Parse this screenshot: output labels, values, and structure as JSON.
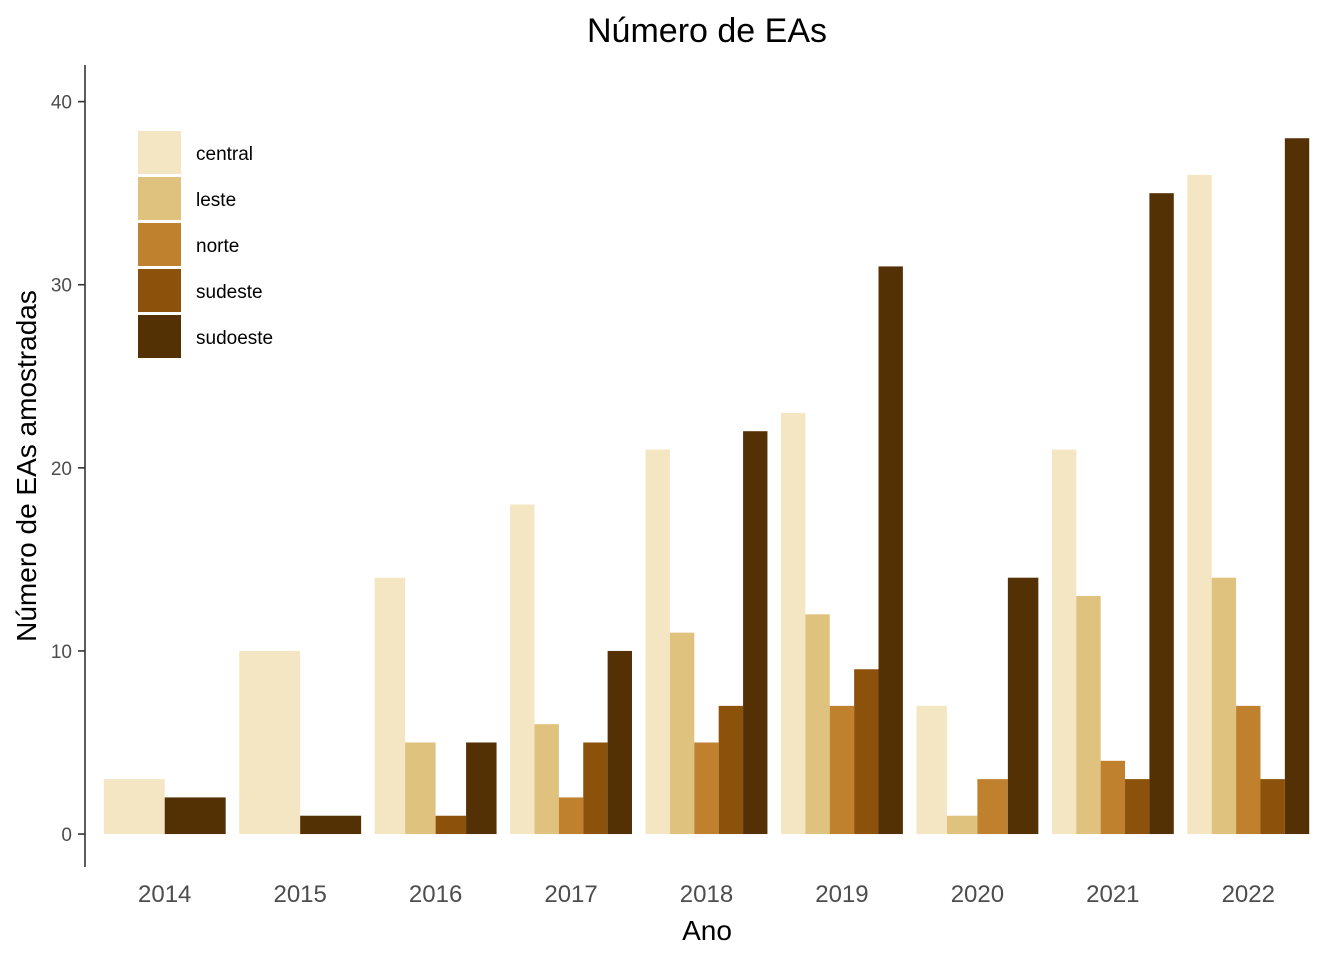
{
  "chart_data": {
    "type": "bar",
    "title": "Número de EAs",
    "xlabel": "Ano",
    "ylabel": "Número de EAs amostradas",
    "ylim": [
      -1.8,
      42
    ],
    "yticks": [
      0,
      10,
      20,
      30,
      40
    ],
    "categories": [
      "2014",
      "2015",
      "2016",
      "2017",
      "2018",
      "2019",
      "2020",
      "2021",
      "2022"
    ],
    "legend_position": "top-left",
    "grid": false,
    "series": [
      {
        "name": "central",
        "color": "#F5E6C3",
        "values": [
          3,
          10,
          14,
          18,
          21,
          23,
          7,
          21,
          36
        ]
      },
      {
        "name": "leste",
        "color": "#DFC27D",
        "values": [
          null,
          null,
          5,
          6,
          11,
          12,
          1,
          13,
          14
        ]
      },
      {
        "name": "norte",
        "color": "#BF812D",
        "values": [
          null,
          null,
          null,
          2,
          5,
          7,
          3,
          4,
          7
        ]
      },
      {
        "name": "sudeste",
        "color": "#8C510A",
        "values": [
          null,
          null,
          1,
          5,
          7,
          9,
          null,
          3,
          3
        ]
      },
      {
        "name": "sudoeste",
        "color": "#543005",
        "values": [
          2,
          1,
          5,
          10,
          22,
          31,
          14,
          35,
          38
        ]
      }
    ]
  }
}
